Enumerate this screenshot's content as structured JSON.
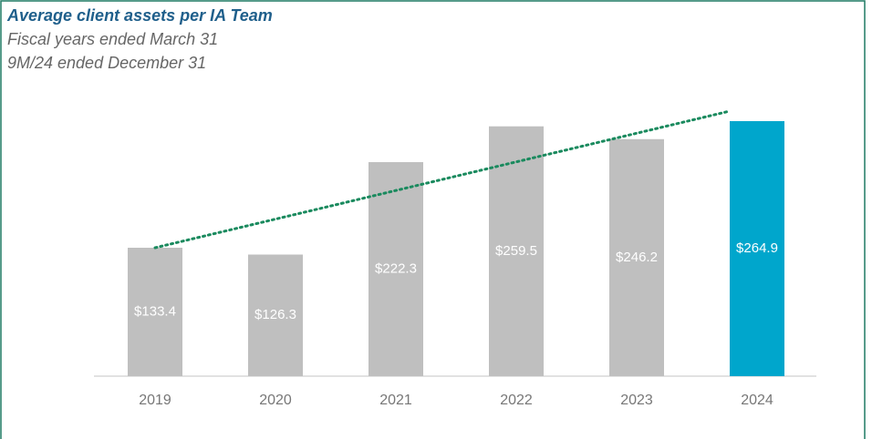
{
  "chart_data": {
    "type": "bar",
    "title": "Average client assets per IA Team",
    "subtitle": [
      "Fiscal years ended March 31",
      "9M/24 ended December 31"
    ],
    "categories": [
      "2019",
      "2020",
      "2021",
      "2022",
      "2023",
      "2024"
    ],
    "values": [
      133.4,
      126.3,
      222.3,
      259.5,
      246.2,
      264.9
    ],
    "value_labels": [
      "$133.4",
      "$126.3",
      "$222.3",
      "$259.5",
      "$246.2",
      "$264.9"
    ],
    "colors": [
      "#bfbfbf",
      "#bfbfbf",
      "#bfbfbf",
      "#bfbfbf",
      "#bfbfbf",
      "#00a6cc"
    ]
  }
}
